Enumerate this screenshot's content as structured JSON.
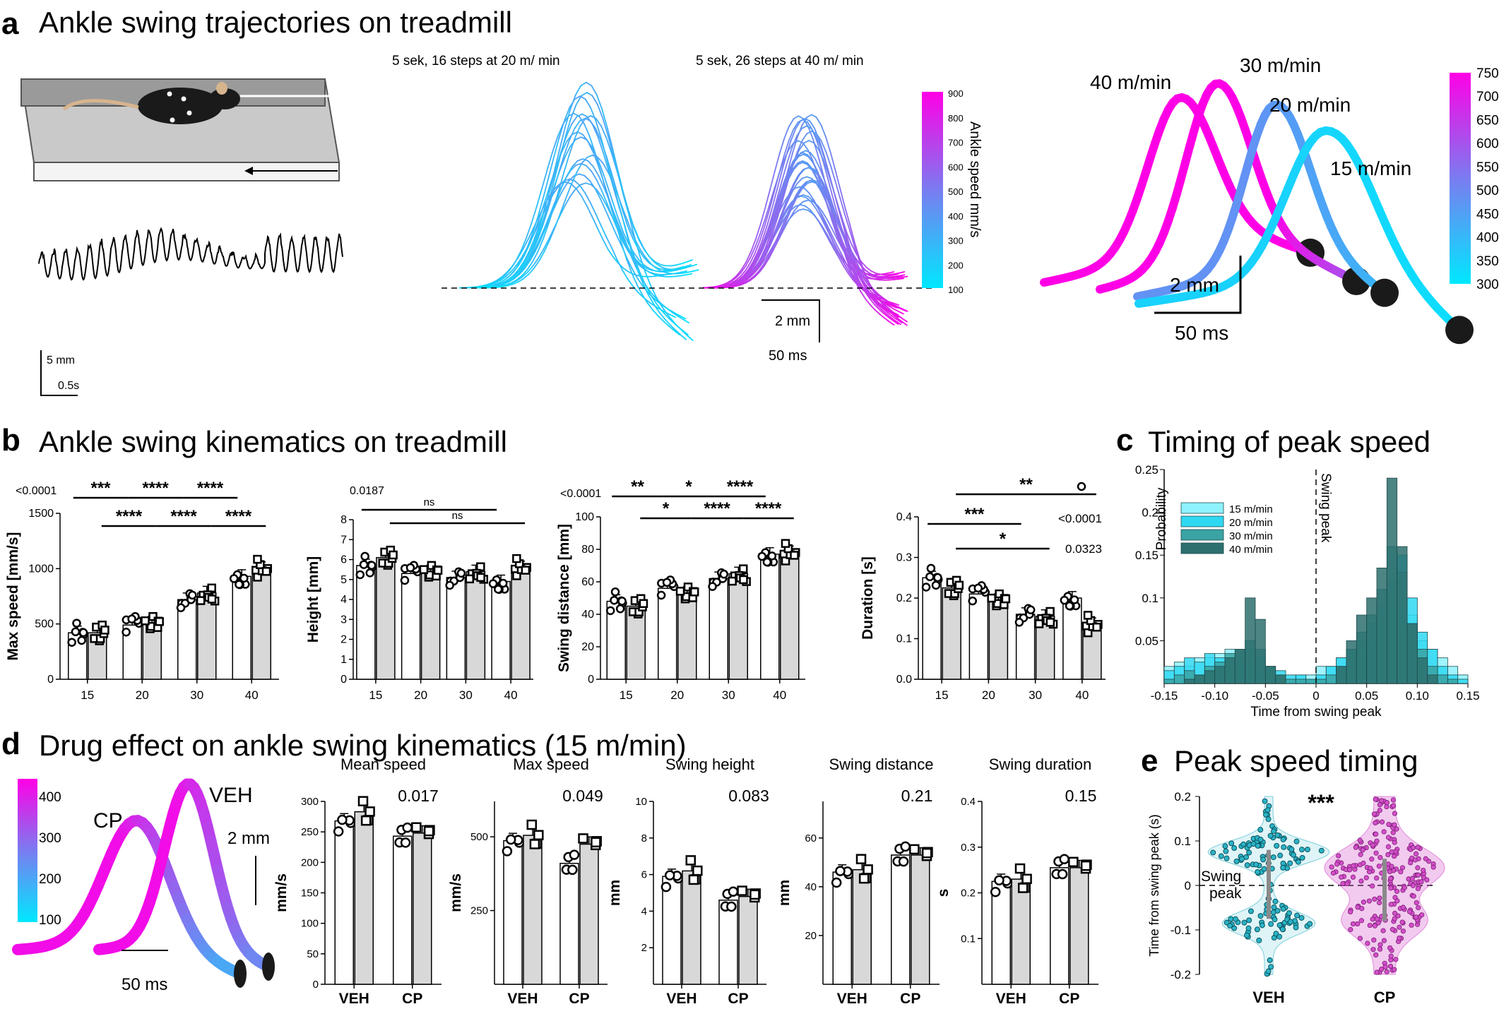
{
  "panels": {
    "a": {
      "letter": "a",
      "title": "Ankle swing trajectories on treadmill"
    },
    "b": {
      "letter": "b",
      "title": "Ankle swing kinematics on treadmill"
    },
    "c": {
      "letter": "c",
      "title": "Timing of peak speed"
    },
    "d": {
      "letter": "d",
      "title": "Drug effect on ankle swing kinematics (15 m/min)"
    },
    "e": {
      "letter": "e",
      "title": "Peak speed timing"
    }
  },
  "colors": {
    "low": "#00e8ff",
    "mid": "#5b8cf0",
    "high": "#ff00e6",
    "bar_open": "#ffffff",
    "bar_grey": "#d8d8d8",
    "hist_15": "#8ff2ff",
    "hist_20": "#2fd8f2",
    "hist_30": "#3aa3a3",
    "hist_40": "#2e6f6f",
    "violin_veh": "#2bb3c6",
    "violin_cp": "#d34fc9"
  },
  "icons": {
    "mouse": "mouse-on-treadmill-icon"
  },
  "panel_a": {
    "scale_trace": {
      "v": "5 mm",
      "h": "0.5s"
    },
    "traj_title_20": "5 sek, 16 steps at 20 m/ min",
    "traj_title_40": "5 sek, 26 steps at 40 m/ min",
    "traj_scale": {
      "v": "2 mm",
      "h": "50 ms"
    },
    "colorbar_traj": {
      "label": "Ankle speed mm/s",
      "ticks": [
        "900",
        "800",
        "700",
        "600",
        "500",
        "400",
        "300",
        "200",
        "100"
      ]
    },
    "avg_traj_labels": [
      "40 m/min",
      "30 m/min",
      "20 m/min",
      "15 m/min"
    ],
    "avg_scale": {
      "v": "2 mm",
      "h": "50 ms"
    },
    "colorbar_avg": {
      "ticks": [
        "750",
        "700",
        "650",
        "600",
        "550",
        "500",
        "450",
        "400",
        "350",
        "300"
      ]
    }
  },
  "chart_data": [
    {
      "id": "b1",
      "type": "bar",
      "ylabel": "Max speed [mm/s]",
      "categories": [
        "15",
        "20",
        "30",
        "40"
      ],
      "ylim": [
        0,
        1500
      ],
      "yticks": [
        "0",
        "500",
        "1000",
        "1500"
      ],
      "series": [
        {
          "values": [
            420,
            490,
            720,
            930
          ]
        },
        {
          "values": [
            420,
            510,
            780,
            1000
          ]
        }
      ],
      "annotations": {
        "p_value": "<0.0001",
        "sig": [
          "***",
          "****",
          "****",
          "****",
          "****",
          "****"
        ]
      }
    },
    {
      "id": "b2",
      "type": "bar",
      "ylabel": "Height [mm]",
      "categories": [
        "15",
        "20",
        "30",
        "40"
      ],
      "ylim": [
        0,
        8
      ],
      "yticks": [
        "0",
        "1",
        "2",
        "3",
        "4",
        "5",
        "6",
        "7",
        "8"
      ],
      "series": [
        {
          "values": [
            5.7,
            5.3,
            5.1,
            4.9
          ]
        },
        {
          "values": [
            6.1,
            5.4,
            5.4,
            5.6
          ]
        }
      ],
      "annotations": {
        "p_value": "0.0187",
        "sig": [
          "ns",
          "ns"
        ]
      }
    },
    {
      "id": "b3",
      "type": "bar",
      "ylabel": "Swing distance  [mm]",
      "categories": [
        "15",
        "20",
        "30",
        "40"
      ],
      "ylim": [
        0,
        100
      ],
      "yticks": [
        "0",
        "20",
        "40",
        "60",
        "80",
        "100"
      ],
      "series": [
        {
          "values": [
            48,
            56,
            62,
            77
          ]
        },
        {
          "values": [
            45,
            53,
            65,
            78
          ]
        }
      ],
      "annotations": {
        "p_value": "<0.0001",
        "sig": [
          "**",
          "*",
          "****",
          "*",
          "****",
          "****"
        ]
      }
    },
    {
      "id": "b4",
      "type": "bar",
      "ylabel": "Duration [s]",
      "categories": [
        "15",
        "20",
        "30",
        "40"
      ],
      "ylim": [
        0,
        0.4
      ],
      "yticks": [
        "0.0",
        "0.1",
        "0.2",
        "0.3",
        "0.4"
      ],
      "series": [
        {
          "values": [
            0.25,
            0.21,
            0.16,
            0.2
          ]
        },
        {
          "values": [
            0.225,
            0.195,
            0.155,
            0.135
          ]
        }
      ],
      "annotations": {
        "p_values": [
          "<0.0001",
          "0.0323"
        ],
        "sig": [
          "**",
          "***",
          "*"
        ]
      }
    },
    {
      "id": "c",
      "type": "bar",
      "subtype": "histogram",
      "xlabel": "Time from swing peak",
      "ylabel": "Probability",
      "xlim": [
        -0.15,
        0.15
      ],
      "ylim": [
        0,
        0.25
      ],
      "xticks": [
        "-0.15",
        "-0.10",
        "-0.05",
        "0",
        "0.05",
        "0.10",
        "0.15"
      ],
      "yticks": [
        "0.05",
        "0.1",
        "0.15",
        "0.2",
        "0.25"
      ],
      "bin_width": 0.01,
      "bins": [
        -0.15,
        -0.14,
        -0.13,
        -0.12,
        -0.11,
        -0.1,
        -0.09,
        -0.08,
        -0.07,
        -0.06,
        -0.05,
        -0.04,
        -0.03,
        -0.02,
        -0.01,
        0.0,
        0.01,
        0.02,
        0.03,
        0.04,
        0.05,
        0.06,
        0.07,
        0.08,
        0.09,
        0.1,
        0.11,
        0.12,
        0.13,
        0.14
      ],
      "series": [
        {
          "name": "15 m/min",
          "values": [
            0.02,
            0.025,
            0.02,
            0.03,
            0.03,
            0.035,
            0.04,
            0.03,
            0.02,
            0.015,
            0.02,
            0.01,
            0.005,
            0.01,
            0.01,
            0.02,
            0.02,
            0.03,
            0.035,
            0.04,
            0.05,
            0.07,
            0.1,
            0.09,
            0.08,
            0.05,
            0.04,
            0.03,
            0.02,
            0.01
          ]
        },
        {
          "name": "20 m/min",
          "values": [
            0.015,
            0.02,
            0.03,
            0.025,
            0.035,
            0.03,
            0.03,
            0.035,
            0.04,
            0.03,
            0.02,
            0.015,
            0.01,
            0.01,
            0.005,
            0.01,
            0.02,
            0.03,
            0.04,
            0.05,
            0.07,
            0.09,
            0.12,
            0.15,
            0.1,
            0.06,
            0.04,
            0.02,
            0.01,
            0.005
          ]
        },
        {
          "name": "30 m/min",
          "values": [
            0.005,
            0.01,
            0.015,
            0.01,
            0.02,
            0.025,
            0.035,
            0.04,
            0.05,
            0.04,
            0.02,
            0.01,
            0.005,
            0.005,
            0.005,
            0.005,
            0.01,
            0.02,
            0.04,
            0.06,
            0.08,
            0.11,
            0.16,
            0.13,
            0.07,
            0.04,
            0.02,
            0.01,
            0.005,
            0.0
          ]
        },
        {
          "name": "40 m/min",
          "values": [
            0.0,
            0.0,
            0.005,
            0.01,
            0.015,
            0.02,
            0.03,
            0.04,
            0.1,
            0.075,
            0.02,
            0.01,
            0.0,
            0.0,
            0.0,
            0.0,
            0.0,
            0.02,
            0.05,
            0.08,
            0.1,
            0.135,
            0.24,
            0.16,
            0.07,
            0.03,
            0.01,
            0.0,
            0.0,
            0.0
          ]
        }
      ],
      "annotations": {
        "vline_label": "Swing peak"
      }
    },
    {
      "id": "d1",
      "type": "bar",
      "title": "Mean speed",
      "ylabel": "mm/s",
      "categories": [
        "VEH",
        "CP"
      ],
      "ylim": [
        0,
        300
      ],
      "yticks": [
        "0",
        "50",
        "100",
        "150",
        "200",
        "250",
        "300"
      ],
      "series": [
        {
          "values": [
            268,
            243
          ]
        },
        {
          "values": [
            283,
            248
          ]
        }
      ],
      "annotations": {
        "p_value": "0.017"
      }
    },
    {
      "id": "d2",
      "type": "bar",
      "title": "Max speed",
      "ylabel": "mm/s",
      "categories": [
        "VEH",
        "CP"
      ],
      "ylim": [
        0,
        620
      ],
      "yticks": [
        "250",
        "500"
      ],
      "series": [
        {
          "values": [
            487,
            410
          ]
        },
        {
          "values": [
            505,
            475
          ]
        }
      ],
      "annotations": {
        "p_value": "0.049"
      }
    },
    {
      "id": "d3",
      "type": "bar",
      "title": "Swing height",
      "ylabel": "mm",
      "categories": [
        "VEH",
        "CP"
      ],
      "ylim": [
        0,
        10
      ],
      "yticks": [
        "2",
        "4",
        "6",
        "8",
        "10"
      ],
      "series": [
        {
          "values": [
            5.9,
            4.6
          ]
        },
        {
          "values": [
            6.2,
            4.8
          ]
        }
      ],
      "annotations": {
        "p_value": "0.083"
      }
    },
    {
      "id": "d4",
      "type": "bar",
      "title": "Swing distance",
      "ylabel": "mm",
      "categories": [
        "VEH",
        "CP"
      ],
      "ylim": [
        0,
        75
      ],
      "yticks": [
        "20",
        "40",
        "60"
      ],
      "series": [
        {
          "values": [
            46,
            53
          ]
        },
        {
          "values": [
            47,
            53
          ]
        }
      ],
      "annotations": {
        "p_value": "0.21"
      }
    },
    {
      "id": "d5",
      "type": "bar",
      "title": "Swing duration",
      "ylabel": "s",
      "categories": [
        "VEH",
        "CP"
      ],
      "ylim": [
        0,
        0.4
      ],
      "yticks": [
        "0.1",
        "0.2",
        "0.3",
        "0.4"
      ],
      "series": [
        {
          "values": [
            0.225,
            0.255
          ]
        },
        {
          "values": [
            0.23,
            0.255
          ]
        }
      ],
      "annotations": {
        "p_value": "0.15"
      }
    },
    {
      "id": "e",
      "type": "scatter",
      "subtype": "violin",
      "ylabel": "Time from swing peak (s)",
      "categories": [
        "VEH",
        "CP"
      ],
      "ylim": [
        -0.2,
        0.2
      ],
      "yticks": [
        "0.2",
        "0.1",
        "0",
        "-0.1",
        "-0.2"
      ],
      "annotations": {
        "sig": "***",
        "hline_label": "Swing peak"
      }
    }
  ],
  "panel_d_traj": {
    "labels": [
      "CP",
      "VEH"
    ],
    "scale": {
      "v": "2 mm",
      "h": "50 ms"
    },
    "colorbar_ticks": [
      "400",
      "300",
      "200",
      "100"
    ]
  }
}
